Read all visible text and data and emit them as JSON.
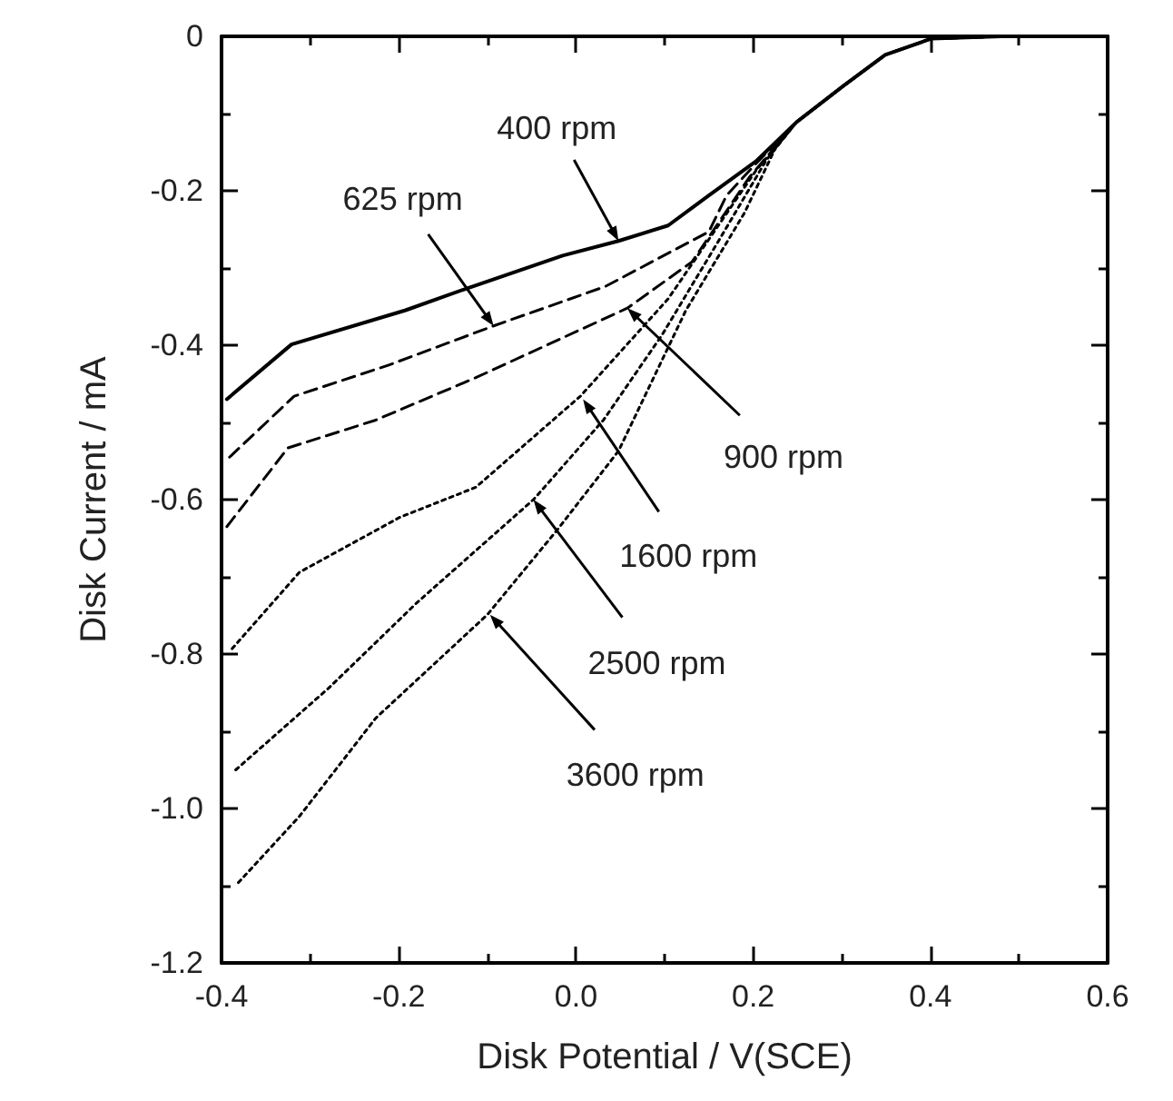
{
  "chart_data": {
    "type": "line",
    "xlabel": "Disk Potential / V(SCE)",
    "ylabel": "Disk Current / mA",
    "xlim": [
      -0.4,
      0.6
    ],
    "ylim": [
      -1.2,
      0
    ],
    "xticks": [
      -0.4,
      -0.2,
      {
        "value": 0,
        "label": "0.0"
      },
      0.2,
      0.4,
      0.6
    ],
    "yticks": [
      -1.2,
      {
        "value": -1,
        "label": "-1.0"
      },
      -0.8,
      -0.6,
      -0.4,
      -0.2,
      0
    ],
    "grid": false,
    "marker": "none",
    "series": [
      {
        "color": "#000000",
        "line_style": "solid",
        "x": [
          -0.394,
          -0.321,
          -0.193,
          -0.127,
          -0.015,
          0.048,
          0.104,
          0.15,
          0.203,
          0.249,
          0.302,
          0.349,
          0.401,
          0.48
        ],
        "values": [
          -0.47,
          -0.399,
          -0.355,
          -0.328,
          -0.284,
          -0.265,
          -0.245,
          -0.206,
          -0.162,
          -0.111,
          -0.064,
          -0.024,
          -0.003,
          0
        ]
      },
      {
        "color": "#000000",
        "line_style": "dashed",
        "x": [
          -0.391,
          -0.318,
          -0.212,
          -0.093,
          0.033,
          0.15,
          0.17,
          0.203,
          0.249,
          0.302,
          0.349,
          0.401,
          0.48
        ],
        "values": [
          -0.545,
          -0.466,
          -0.426,
          -0.375,
          -0.324,
          -0.253,
          -0.206,
          -0.165,
          -0.111,
          -0.064,
          -0.024,
          -0.003,
          0
        ]
      },
      {
        "color": "#000000",
        "line_style": "dashed",
        "x": [
          -0.394,
          -0.325,
          -0.226,
          -0.113,
          0.058,
          0.131,
          0.196,
          0.249,
          0.302,
          0.349,
          0.401,
          0.48
        ],
        "values": [
          -0.635,
          -0.533,
          -0.497,
          -0.442,
          -0.352,
          -0.292,
          -0.182,
          -0.111,
          -0.064,
          -0.024,
          -0.003,
          0
        ]
      },
      {
        "color": "#000000",
        "line_style": "dotted",
        "x": [
          -0.388,
          -0.312,
          -0.199,
          -0.113,
          0.005,
          0.104,
          0.203,
          0.249,
          0.302,
          0.349,
          0.401,
          0.48
        ],
        "values": [
          -0.793,
          -0.694,
          -0.623,
          -0.584,
          -0.466,
          -0.34,
          -0.174,
          -0.111,
          -0.064,
          -0.024,
          -0.003,
          0
        ]
      },
      {
        "color": "#000000",
        "line_style": "dotted",
        "x": [
          -0.384,
          -0.279,
          -0.18,
          -0.048,
          0.031,
          0.097,
          0.163,
          0.215,
          0.249,
          0.302,
          0.349,
          0.401,
          0.48
        ],
        "values": [
          -0.95,
          -0.844,
          -0.734,
          -0.6,
          -0.497,
          -0.387,
          -0.261,
          -0.16,
          -0.111,
          -0.064,
          -0.024,
          -0.003,
          0
        ]
      },
      {
        "color": "#000000",
        "line_style": "dotted",
        "x": [
          -0.381,
          -0.312,
          -0.226,
          -0.1,
          -0.021,
          0.048,
          0.124,
          0.19,
          0.225,
          0.249,
          0.302,
          0.349,
          0.401,
          0.48
        ],
        "values": [
          -1.096,
          -1.01,
          -0.883,
          -0.749,
          -0.639,
          -0.537,
          -0.355,
          -0.229,
          -0.145,
          -0.111,
          -0.064,
          -0.024,
          -0.003,
          0
        ]
      }
    ],
    "annotations": [
      {
        "text": "400 rpm",
        "x": 0.048,
        "y": -0.265
      },
      {
        "text": "625 rpm",
        "x": -0.093,
        "y": -0.375
      },
      {
        "text": "900 rpm",
        "x": 0.058,
        "y": -0.352
      },
      {
        "text": "1600 rpm",
        "x": 0.008,
        "y": -0.47
      },
      {
        "text": "2500 rpm",
        "x": -0.048,
        "y": -0.6
      },
      {
        "text": "3600 rpm",
        "x": -0.097,
        "y": -0.749
      }
    ]
  }
}
